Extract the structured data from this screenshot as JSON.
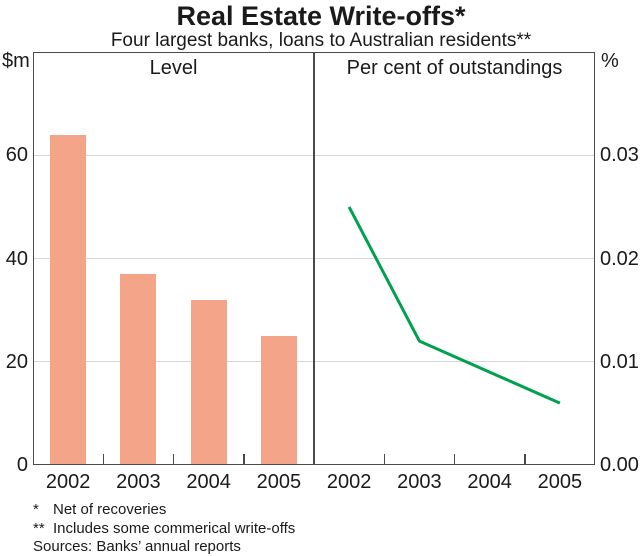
{
  "header": {
    "title": "Real Estate Write-offs*",
    "subtitle": "Four largest banks, loans to Australian residents**"
  },
  "chart_data": [
    {
      "type": "bar",
      "panel_label": "Level",
      "unit_label": "$m",
      "axis_side": "left",
      "categories": [
        "2002",
        "2003",
        "2004",
        "2005"
      ],
      "values": [
        64,
        37,
        32,
        25
      ],
      "ylim": [
        0,
        80
      ],
      "ytick_labels": [
        "60",
        "40",
        "20",
        "0"
      ],
      "grid": true,
      "bar_color": "#F3A489"
    },
    {
      "type": "line",
      "panel_label": "Per cent of outstandings",
      "unit_label": "%",
      "axis_side": "right",
      "categories": [
        "2002",
        "2003",
        "2004",
        "2005"
      ],
      "values": [
        0.025,
        0.012,
        0.009,
        0.006
      ],
      "ylim": [
        0,
        0.04
      ],
      "ytick_labels": [
        "0.03",
        "0.02",
        "0.01",
        "0.00"
      ],
      "grid": true,
      "line_color": "#00A14E"
    }
  ],
  "footnotes": [
    {
      "marker": "*",
      "text": "Net of recoveries"
    },
    {
      "marker": "**",
      "text": "Includes some commerical write-offs"
    },
    {
      "marker": "",
      "text": "Sources: Banks’ annual reports"
    }
  ],
  "colors": {
    "frame": "#4a4a4a",
    "grid": "#d8d8d8",
    "text": "#1a1a1a",
    "bar": "#F3A489",
    "line": "#00A14E"
  }
}
